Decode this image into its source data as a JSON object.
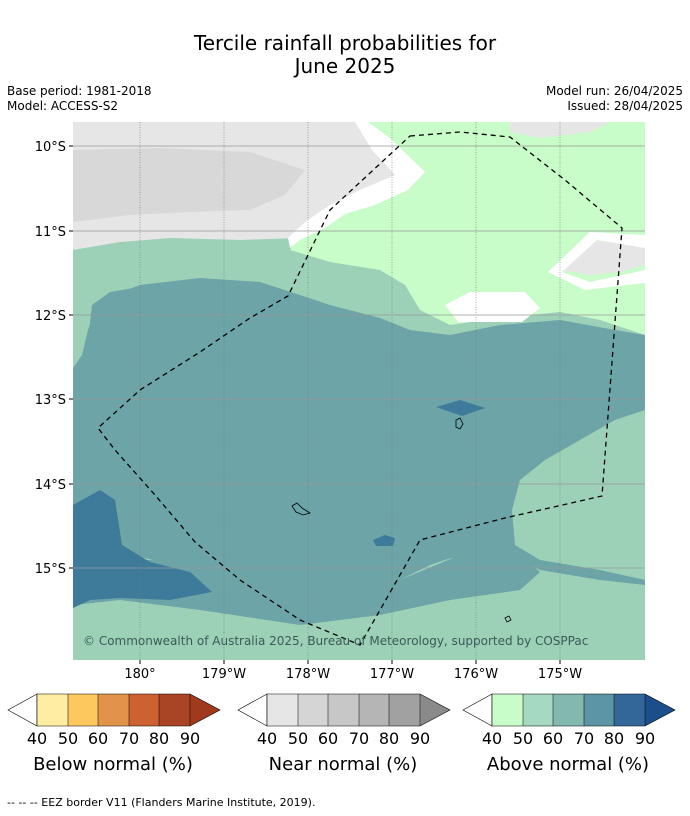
{
  "header": {
    "title_line1": "Tercile rainfall probabilities for",
    "title_line2": "June 2025",
    "base_period": "Base period: 1981-2018",
    "model": "Model: ACCESS-S2",
    "model_run": "Model run: 26/04/2025",
    "issued": "Issued: 28/04/2025"
  },
  "map": {
    "lat_labels": [
      "10°S",
      "11°S",
      "12°S",
      "13°S",
      "14°S",
      "15°S"
    ],
    "lon_labels": [
      "180°",
      "179°W",
      "178°W",
      "177°W",
      "176°W",
      "175°W"
    ],
    "copyright": "© Commonwealth of Australia 2025, Bureau of Meteorology, supported by COSPPac",
    "colors": {
      "near_normal_40": "#e6e6e6",
      "above_normal_40": "#c8fcc8",
      "above_normal_50": "#9dd1b7",
      "above_normal_70": "#6ca4a7",
      "above_normal_80": "#3e7a9a"
    }
  },
  "legends": [
    {
      "name": "below",
      "title": "Below normal (%)",
      "ticks": [
        "40",
        "50",
        "60",
        "70",
        "80",
        "90"
      ],
      "colors": [
        "#ffeea1",
        "#fdc85d",
        "#e2934a",
        "#cc6231",
        "#aa4424",
        "#a13a1c"
      ]
    },
    {
      "name": "near",
      "title": "Near normal (%)",
      "ticks": [
        "40",
        "50",
        "60",
        "70",
        "80",
        "90"
      ],
      "colors": [
        "#e6e6e6",
        "#d5d5d5",
        "#c7c7c7",
        "#b5b5b5",
        "#a1a1a1",
        "#8a8a8a"
      ]
    },
    {
      "name": "above",
      "title": "Above normal (%)",
      "ticks": [
        "40",
        "50",
        "60",
        "70",
        "80",
        "90"
      ],
      "colors": [
        "#c8fcc8",
        "#a6d9c1",
        "#82b8ae",
        "#5c95a6",
        "#33679a",
        "#1b4e8a"
      ]
    }
  ],
  "footer": {
    "eez_note": "--  --  -- EEZ border V11 (Flanders Marine Institute, 2019)."
  }
}
